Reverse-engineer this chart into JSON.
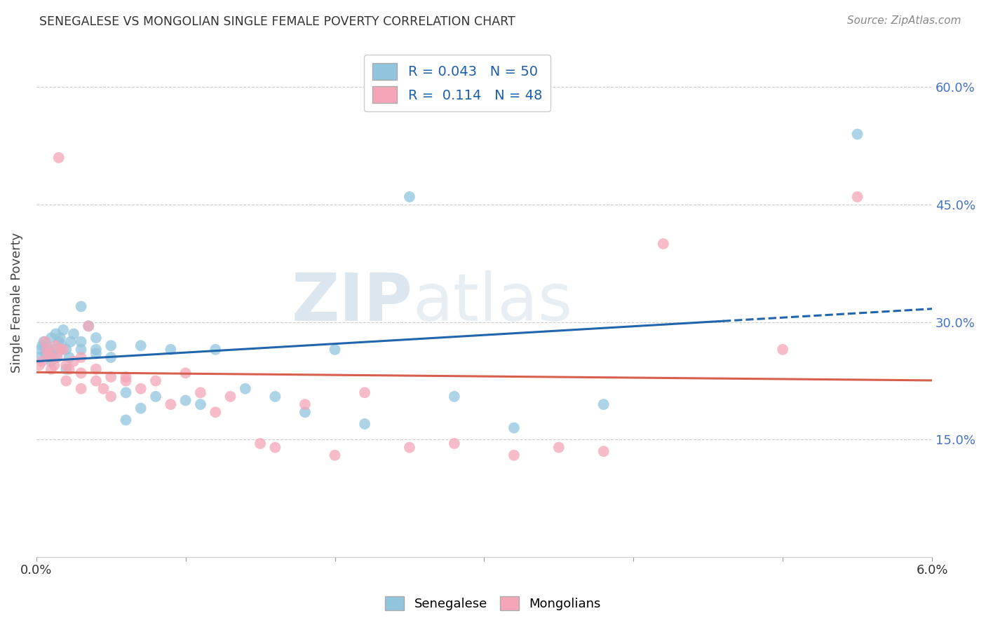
{
  "title": "SENEGALESE VS MONGOLIAN SINGLE FEMALE POVERTY CORRELATION CHART",
  "source": "Source: ZipAtlas.com",
  "ylabel": "Single Female Poverty",
  "xlim": [
    0.0,
    0.06
  ],
  "ylim": [
    0.0,
    0.65
  ],
  "xtick_vals": [
    0.0,
    0.01,
    0.02,
    0.03,
    0.04,
    0.05,
    0.06
  ],
  "xtick_labels_show": [
    "0.0%",
    "",
    "",
    "",
    "",
    "",
    "6.0%"
  ],
  "ytick_vals": [
    0.15,
    0.3,
    0.45,
    0.6
  ],
  "ytick_labels": [
    "15.0%",
    "30.0%",
    "45.0%",
    "60.0%"
  ],
  "blue_color": "#92c5de",
  "pink_color": "#f4a6b8",
  "blue_line_color": "#2166ac",
  "pink_line_color": "#d6604d",
  "R_blue": 0.043,
  "N_blue": 50,
  "R_pink": 0.114,
  "N_pink": 48,
  "legend_label_blue": "Senegalese",
  "legend_label_pink": "Mongolians",
  "watermark_zip": "ZIP",
  "watermark_atlas": "atlas",
  "blue_scatter_x": [
    0.0002,
    0.0003,
    0.0004,
    0.0005,
    0.0006,
    0.0007,
    0.0008,
    0.0009,
    0.001,
    0.001,
    0.0012,
    0.0013,
    0.0014,
    0.0015,
    0.0016,
    0.0017,
    0.0018,
    0.002,
    0.002,
    0.0022,
    0.0023,
    0.0025,
    0.003,
    0.003,
    0.003,
    0.0035,
    0.004,
    0.004,
    0.004,
    0.005,
    0.005,
    0.006,
    0.006,
    0.007,
    0.007,
    0.008,
    0.009,
    0.01,
    0.011,
    0.012,
    0.014,
    0.016,
    0.018,
    0.02,
    0.022,
    0.025,
    0.028,
    0.032,
    0.038,
    0.055
  ],
  "blue_scatter_y": [
    0.255,
    0.265,
    0.27,
    0.275,
    0.26,
    0.27,
    0.265,
    0.255,
    0.25,
    0.28,
    0.265,
    0.285,
    0.26,
    0.275,
    0.28,
    0.27,
    0.29,
    0.24,
    0.265,
    0.255,
    0.275,
    0.285,
    0.32,
    0.275,
    0.265,
    0.295,
    0.28,
    0.265,
    0.26,
    0.27,
    0.255,
    0.175,
    0.21,
    0.19,
    0.27,
    0.205,
    0.265,
    0.2,
    0.195,
    0.265,
    0.215,
    0.205,
    0.185,
    0.265,
    0.17,
    0.46,
    0.205,
    0.165,
    0.195,
    0.54
  ],
  "pink_scatter_x": [
    0.0002,
    0.0004,
    0.0006,
    0.0007,
    0.0008,
    0.001,
    0.001,
    0.0012,
    0.0013,
    0.0014,
    0.0015,
    0.0016,
    0.0018,
    0.002,
    0.002,
    0.0022,
    0.0025,
    0.003,
    0.003,
    0.003,
    0.0035,
    0.004,
    0.004,
    0.0045,
    0.005,
    0.005,
    0.006,
    0.006,
    0.007,
    0.008,
    0.009,
    0.01,
    0.011,
    0.012,
    0.013,
    0.015,
    0.016,
    0.018,
    0.02,
    0.022,
    0.025,
    0.028,
    0.032,
    0.035,
    0.038,
    0.042,
    0.05,
    0.055
  ],
  "pink_scatter_y": [
    0.245,
    0.25,
    0.275,
    0.265,
    0.26,
    0.24,
    0.255,
    0.245,
    0.27,
    0.255,
    0.51,
    0.265,
    0.265,
    0.225,
    0.245,
    0.24,
    0.25,
    0.215,
    0.235,
    0.255,
    0.295,
    0.225,
    0.24,
    0.215,
    0.205,
    0.23,
    0.23,
    0.225,
    0.215,
    0.225,
    0.195,
    0.235,
    0.21,
    0.185,
    0.205,
    0.145,
    0.14,
    0.195,
    0.13,
    0.21,
    0.14,
    0.145,
    0.13,
    0.14,
    0.135,
    0.4,
    0.265,
    0.46
  ],
  "background_color": "#ffffff",
  "grid_color": "#cccccc"
}
